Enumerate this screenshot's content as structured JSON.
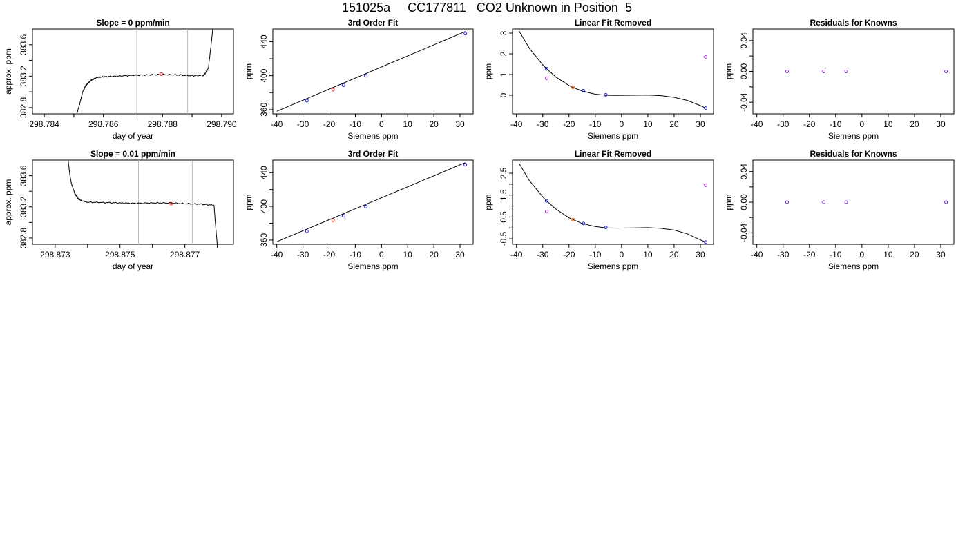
{
  "figure": {
    "title": "151025a     CC177811   CO2 Unknown in Position  5"
  },
  "colors": {
    "axis": "#000000",
    "trace": "#000000",
    "guide": "#bbbbbb",
    "blue": "#2222dd",
    "red": "#ee2222",
    "orange": "#ee5500",
    "purple": "#7722cc",
    "magenta": "#bb33ee"
  },
  "chart_data": [
    {
      "id": "trace-1",
      "type": "line",
      "title": "Slope =  0  ppm/min",
      "xlabel": "day of year",
      "ylabel": "approx. ppm",
      "xlim": [
        298.7836,
        298.7904
      ],
      "ylim": [
        382.72,
        383.8
      ],
      "xticks": [
        298.784,
        298.785,
        298.786,
        298.787,
        298.788,
        298.789,
        298.79
      ],
      "xtick_labels": [
        "298.784",
        "",
        "298.786",
        "",
        "298.788",
        "",
        "298.790"
      ],
      "yticks": [
        382.8,
        383.0,
        383.2,
        383.4,
        383.6
      ],
      "ytick_labels": [
        "382.8",
        "",
        "383.2",
        "",
        "383.6"
      ],
      "vlines": [
        298.78713,
        298.78885
      ],
      "marker": {
        "x": 298.78796,
        "y": 383.225,
        "color": "red"
      },
      "series": [
        {
          "x": [
            298.7851,
            298.7852,
            298.7853,
            298.7854,
            298.7855,
            298.7856,
            298.7858,
            298.7861,
            298.7865,
            298.787,
            298.7875,
            298.788,
            298.7885,
            298.789,
            298.7894,
            298.78955,
            298.78965,
            298.7897
          ],
          "y": [
            382.72,
            382.85,
            383.0,
            383.08,
            383.12,
            383.15,
            383.185,
            383.195,
            383.2,
            383.21,
            383.215,
            383.22,
            383.215,
            383.205,
            383.21,
            383.3,
            383.62,
            383.8
          ]
        }
      ]
    },
    {
      "id": "fit-1",
      "type": "scatter",
      "title": "3rd Order Fit",
      "xlabel": "Siemens ppm",
      "ylabel": "ppm",
      "xlim": [
        -41.5,
        35.0
      ],
      "ylim": [
        355,
        455
      ],
      "xticks": [
        -40,
        -30,
        -20,
        -10,
        0,
        10,
        20,
        30
      ],
      "xtick_labels": [
        "-40",
        "-30",
        "-20",
        "-10",
        "0",
        "10",
        "20",
        "30"
      ],
      "yticks": [
        360,
        380,
        400,
        420,
        440
      ],
      "ytick_labels": [
        "360",
        "",
        "400",
        "",
        "440"
      ],
      "curve": {
        "x": [
          -40,
          32
        ],
        "y": [
          358,
          452
        ]
      },
      "points": [
        {
          "x": -28.5,
          "y": 370.5,
          "color": "blue"
        },
        {
          "x": -18.5,
          "y": 383.5,
          "color": "red"
        },
        {
          "x": -14.5,
          "y": 388.8,
          "color": "blue"
        },
        {
          "x": -6.0,
          "y": 399.8,
          "color": "blue"
        },
        {
          "x": 32.0,
          "y": 449.5,
          "color": "blue"
        }
      ]
    },
    {
      "id": "linfit-1",
      "type": "scatter",
      "title": "Linear Fit Removed",
      "xlabel": "Siemens ppm",
      "ylabel": "ppm",
      "xlim": [
        -41.5,
        35.0
      ],
      "ylim": [
        -0.9,
        3.2
      ],
      "xticks": [
        -40,
        -30,
        -20,
        -10,
        0,
        10,
        20,
        30
      ],
      "xtick_labels": [
        "-40",
        "-30",
        "-20",
        "-10",
        "0",
        "10",
        "20",
        "30"
      ],
      "yticks": [
        0,
        1,
        2,
        3
      ],
      "ytick_labels": [
        "0",
        "1",
        "2",
        "3"
      ],
      "curve": {
        "x": [
          -39,
          -35,
          -30,
          -28.5,
          -25,
          -20,
          -18.5,
          -15,
          -10,
          -6,
          -2,
          5,
          10,
          15,
          20,
          25,
          30,
          32
        ],
        "y": [
          3.1,
          2.25,
          1.47,
          1.28,
          0.88,
          0.47,
          0.38,
          0.2,
          0.05,
          0.0,
          -0.01,
          0.0,
          0.01,
          -0.02,
          -0.1,
          -0.25,
          -0.5,
          -0.62
        ]
      },
      "points": [
        {
          "x": -28.5,
          "y": 1.28,
          "color": "blue"
        },
        {
          "x": -28.5,
          "y": 0.82,
          "color": "magenta"
        },
        {
          "x": -18.5,
          "y": 0.38,
          "color": "orange"
        },
        {
          "x": -14.5,
          "y": 0.22,
          "color": "blue"
        },
        {
          "x": -6.0,
          "y": 0.02,
          "color": "blue"
        },
        {
          "x": 32.0,
          "y": -0.62,
          "color": "blue"
        },
        {
          "x": 32.0,
          "y": 1.85,
          "color": "magenta"
        }
      ]
    },
    {
      "id": "resid-1",
      "type": "scatter",
      "title": "Residuals for Knowns",
      "xlabel": "Siemens ppm",
      "ylabel": "ppm",
      "xlim": [
        -41.5,
        35.0
      ],
      "ylim": [
        -0.055,
        0.055
      ],
      "xticks": [
        -40,
        -30,
        -20,
        -10,
        0,
        10,
        20,
        30
      ],
      "xtick_labels": [
        "-40",
        "-30",
        "-20",
        "-10",
        "0",
        "10",
        "20",
        "30"
      ],
      "yticks": [
        -0.04,
        -0.02,
        0.0,
        0.02,
        0.04
      ],
      "ytick_labels": [
        "-0.04",
        "",
        "0.00",
        "",
        "0.04"
      ],
      "points": [
        {
          "x": -28.5,
          "y": 0.0,
          "color": "purple"
        },
        {
          "x": -14.5,
          "y": 0.0,
          "color": "purple"
        },
        {
          "x": -6.0,
          "y": 0.0,
          "color": "purple"
        },
        {
          "x": 32.0,
          "y": 0.0,
          "color": "purple"
        }
      ]
    },
    {
      "id": "trace-2",
      "type": "line",
      "title": "Slope =  0.01  ppm/min",
      "xlabel": "day of year",
      "ylabel": "approx. ppm",
      "xlim": [
        298.8723,
        298.8785
      ],
      "ylim": [
        382.72,
        383.8
      ],
      "xticks": [
        298.873,
        298.874,
        298.875,
        298.876,
        298.877,
        298.878
      ],
      "xtick_labels": [
        "298.873",
        "",
        "298.875",
        "",
        "298.877",
        ""
      ],
      "yticks": [
        382.8,
        383.0,
        383.2,
        383.4,
        383.6
      ],
      "ytick_labels": [
        "382.8",
        "",
        "383.2",
        "",
        "383.6"
      ],
      "vlines": [
        298.87557,
        298.87723
      ],
      "marker": {
        "x": 298.87658,
        "y": 383.24,
        "color": "red"
      },
      "series": [
        {
          "x": [
            298.8734,
            298.87345,
            298.8735,
            298.8736,
            298.8737,
            298.8738,
            298.874,
            298.8745,
            298.875,
            298.8755,
            298.876,
            298.8765,
            298.877,
            298.8775,
            298.8779,
            298.87795,
            298.878
          ],
          "y": [
            383.8,
            383.62,
            383.5,
            383.38,
            383.31,
            383.28,
            383.26,
            383.255,
            383.25,
            383.245,
            383.25,
            383.25,
            383.24,
            383.235,
            383.22,
            382.95,
            382.72
          ]
        }
      ]
    },
    {
      "id": "fit-2",
      "type": "scatter",
      "title": "3rd Order Fit",
      "xlabel": "Siemens ppm",
      "ylabel": "ppm",
      "xlim": [
        -41.5,
        35.0
      ],
      "ylim": [
        355,
        455
      ],
      "xticks": [
        -40,
        -30,
        -20,
        -10,
        0,
        10,
        20,
        30
      ],
      "xtick_labels": [
        "-40",
        "-30",
        "-20",
        "-10",
        "0",
        "10",
        "20",
        "30"
      ],
      "yticks": [
        360,
        380,
        400,
        420,
        440
      ],
      "ytick_labels": [
        "360",
        "",
        "400",
        "",
        "440"
      ],
      "curve": {
        "x": [
          -40,
          32
        ],
        "y": [
          358,
          452
        ]
      },
      "points": [
        {
          "x": -28.5,
          "y": 370.5,
          "color": "blue"
        },
        {
          "x": -18.5,
          "y": 383.5,
          "color": "red"
        },
        {
          "x": -14.5,
          "y": 388.8,
          "color": "blue"
        },
        {
          "x": -6.0,
          "y": 399.8,
          "color": "blue"
        },
        {
          "x": 32.0,
          "y": 449.5,
          "color": "blue"
        }
      ]
    },
    {
      "id": "linfit-2",
      "type": "scatter",
      "title": "Linear Fit Removed",
      "xlabel": "Siemens ppm",
      "ylabel": "ppm",
      "xlim": [
        -41.5,
        35.0
      ],
      "ylim": [
        -0.75,
        3.1
      ],
      "xticks": [
        -40,
        -30,
        -20,
        -10,
        0,
        10,
        20,
        30
      ],
      "xtick_labels": [
        "-40",
        "-30",
        "-20",
        "-10",
        "0",
        "10",
        "20",
        "30"
      ],
      "yticks": [
        -0.5,
        0.0,
        0.5,
        1.0,
        1.5,
        2.0,
        2.5
      ],
      "ytick_labels": [
        "-0.5",
        "",
        "0.5",
        "",
        "1.5",
        "",
        "2.5"
      ],
      "curve": {
        "x": [
          -39,
          -35,
          -30,
          -28.5,
          -25,
          -20,
          -18.5,
          -15,
          -10,
          -6,
          -2,
          5,
          10,
          15,
          20,
          25,
          30,
          32
        ],
        "y": [
          2.95,
          2.15,
          1.42,
          1.23,
          0.86,
          0.46,
          0.38,
          0.2,
          0.06,
          0.0,
          -0.01,
          0.0,
          0.01,
          -0.02,
          -0.1,
          -0.27,
          -0.55,
          -0.65
        ]
      },
      "points": [
        {
          "x": -28.5,
          "y": 1.23,
          "color": "blue"
        },
        {
          "x": -28.5,
          "y": 0.75,
          "color": "magenta"
        },
        {
          "x": -18.5,
          "y": 0.38,
          "color": "orange"
        },
        {
          "x": -14.5,
          "y": 0.2,
          "color": "blue"
        },
        {
          "x": -6.0,
          "y": 0.02,
          "color": "blue"
        },
        {
          "x": 32.0,
          "y": -0.65,
          "color": "blue"
        },
        {
          "x": 32.0,
          "y": 1.95,
          "color": "magenta"
        }
      ]
    },
    {
      "id": "resid-2",
      "type": "scatter",
      "title": "Residuals for Knowns",
      "xlabel": "Siemens ppm",
      "ylabel": "ppm",
      "xlim": [
        -41.5,
        35.0
      ],
      "ylim": [
        -0.055,
        0.055
      ],
      "xticks": [
        -40,
        -30,
        -20,
        -10,
        0,
        10,
        20,
        30
      ],
      "xtick_labels": [
        "-40",
        "-30",
        "-20",
        "-10",
        "0",
        "10",
        "20",
        "30"
      ],
      "yticks": [
        -0.04,
        -0.02,
        0.0,
        0.02,
        0.04
      ],
      "ytick_labels": [
        "-0.04",
        "",
        "0.00",
        "",
        "0.04"
      ],
      "points": [
        {
          "x": -28.5,
          "y": 0.0,
          "color": "purple"
        },
        {
          "x": -14.5,
          "y": 0.0,
          "color": "purple"
        },
        {
          "x": -6.0,
          "y": 0.0,
          "color": "purple"
        },
        {
          "x": 32.0,
          "y": 0.0,
          "color": "purple"
        }
      ]
    }
  ]
}
